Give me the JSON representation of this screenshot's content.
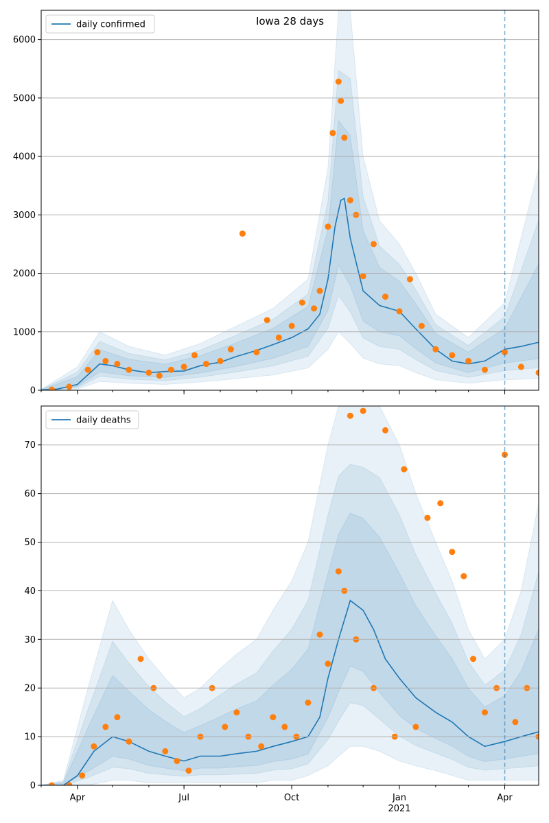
{
  "title": "Iowa 28 days",
  "colors": {
    "line": "#1f77b4",
    "points": "#ff7f0e",
    "band": "#1f77b4",
    "grid": "#b0b0b0",
    "vline": "#1f77b4"
  },
  "chart_data": [
    {
      "type": "line",
      "name": "confirmed-panel",
      "title": "Iowa 28 days",
      "legend": "daily confirmed",
      "legend_position": "top-left",
      "x_ticks": [
        "Apr",
        "Jul",
        "Oct",
        "Jan",
        "Apr"
      ],
      "x_sublabel": "2021",
      "y_ticks": [
        0,
        1000,
        2000,
        3000,
        4000,
        5000,
        6000
      ],
      "ylim": [
        0,
        6500
      ],
      "grid": "horizontal",
      "vline_date": "2021-04-01",
      "series": [
        {
          "name": "daily confirmed",
          "x": [
            "2020-03-01",
            "2020-03-15",
            "2020-04-01",
            "2020-04-20",
            "2020-05-01",
            "2020-05-15",
            "2020-06-01",
            "2020-06-15",
            "2020-07-01",
            "2020-07-15",
            "2020-08-01",
            "2020-08-15",
            "2020-09-01",
            "2020-09-15",
            "2020-10-01",
            "2020-10-15",
            "2020-10-25",
            "2020-11-01",
            "2020-11-07",
            "2020-11-12",
            "2020-11-15",
            "2020-11-20",
            "2020-12-01",
            "2020-12-15",
            "2021-01-01",
            "2021-01-15",
            "2021-02-01",
            "2021-02-15",
            "2021-03-01",
            "2021-03-15",
            "2021-04-01",
            "2021-04-15",
            "2021-04-30"
          ],
          "y": [
            5,
            20,
            100,
            450,
            420,
            350,
            300,
            320,
            330,
            420,
            480,
            580,
            680,
            780,
            900,
            1050,
            1300,
            1900,
            2800,
            3250,
            3280,
            2600,
            1700,
            1450,
            1350,
            1050,
            700,
            500,
            450,
            500,
            700,
            750,
            820
          ]
        },
        {
          "name": "daily confirmed (observed)",
          "x": [
            "2020-03-10",
            "2020-03-25",
            "2020-04-10",
            "2020-04-18",
            "2020-04-25",
            "2020-05-05",
            "2020-05-15",
            "2020-06-01",
            "2020-06-10",
            "2020-06-20",
            "2020-07-01",
            "2020-07-10",
            "2020-07-20",
            "2020-08-01",
            "2020-08-10",
            "2020-08-20",
            "2020-09-01",
            "2020-09-10",
            "2020-09-20",
            "2020-10-01",
            "2020-10-10",
            "2020-10-20",
            "2020-10-25",
            "2020-11-01",
            "2020-11-05",
            "2020-11-10",
            "2020-11-12",
            "2020-11-15",
            "2020-11-20",
            "2020-11-25",
            "2020-12-01",
            "2020-12-10",
            "2020-12-20",
            "2021-01-01",
            "2021-01-10",
            "2021-01-20",
            "2021-02-01",
            "2021-02-15",
            "2021-03-01",
            "2021-03-15",
            "2021-04-01",
            "2021-04-15",
            "2021-04-30"
          ],
          "y": [
            10,
            60,
            350,
            650,
            500,
            450,
            350,
            300,
            250,
            350,
            400,
            600,
            450,
            500,
            700,
            2680,
            650,
            1200,
            900,
            1100,
            1500,
            1400,
            1700,
            2800,
            4400,
            5280,
            4950,
            4320,
            3250,
            3000,
            1950,
            2500,
            1600,
            1350,
            1900,
            1100,
            700,
            600,
            500,
            350,
            650,
            400,
            300
          ]
        },
        {
          "name": "uncertainty-band-outer",
          "x": [
            "2020-03-01",
            "2020-04-01",
            "2020-04-20",
            "2020-05-15",
            "2020-06-15",
            "2020-07-15",
            "2020-08-15",
            "2020-09-15",
            "2020-10-15",
            "2020-11-01",
            "2020-11-10",
            "2020-11-20",
            "2020-12-01",
            "2020-12-15",
            "2021-01-01",
            "2021-01-15",
            "2021-02-01",
            "2021-03-01",
            "2021-04-01",
            "2021-04-30"
          ],
          "lower": [
            0,
            20,
            150,
            120,
            100,
            140,
            200,
            260,
            380,
            700,
            1000,
            800,
            550,
            450,
            420,
            300,
            180,
            120,
            180,
            200
          ],
          "upper": [
            15,
            400,
            1000,
            750,
            600,
            800,
            1100,
            1400,
            1900,
            3800,
            6500,
            6500,
            4000,
            2900,
            2500,
            2000,
            1300,
            900,
            1500,
            3800
          ]
        }
      ]
    },
    {
      "type": "line",
      "name": "deaths-panel",
      "legend": "daily deaths",
      "legend_position": "top-left",
      "x_ticks": [
        "Apr",
        "Jul",
        "Oct",
        "Jan",
        "Apr"
      ],
      "x_sublabel": "2021",
      "y_ticks": [
        0,
        10,
        20,
        30,
        40,
        50,
        60,
        70
      ],
      "ylim": [
        0,
        78
      ],
      "grid": "horizontal",
      "vline_date": "2021-04-01",
      "series": [
        {
          "name": "daily deaths",
          "x": [
            "2020-03-01",
            "2020-03-20",
            "2020-04-01",
            "2020-04-15",
            "2020-05-01",
            "2020-05-15",
            "2020-06-01",
            "2020-06-15",
            "2020-07-01",
            "2020-07-15",
            "2020-08-01",
            "2020-08-15",
            "2020-09-01",
            "2020-09-15",
            "2020-10-01",
            "2020-10-15",
            "2020-10-25",
            "2020-11-01",
            "2020-11-10",
            "2020-11-20",
            "2020-12-01",
            "2020-12-10",
            "2020-12-20",
            "2021-01-01",
            "2021-01-15",
            "2021-02-01",
            "2021-02-15",
            "2021-03-01",
            "2021-03-15",
            "2021-04-01",
            "2021-04-15",
            "2021-04-30"
          ],
          "y": [
            0,
            0,
            2,
            7,
            10,
            9,
            7,
            6,
            5,
            6,
            6,
            6.5,
            7,
            8,
            9,
            10,
            14,
            22,
            30,
            38,
            36,
            32,
            26,
            22,
            18,
            15,
            13,
            10,
            8,
            9,
            10,
            11
          ]
        },
        {
          "name": "daily deaths (observed)",
          "x": [
            "2020-03-10",
            "2020-03-25",
            "2020-04-05",
            "2020-04-15",
            "2020-04-25",
            "2020-05-05",
            "2020-05-15",
            "2020-05-25",
            "2020-06-05",
            "2020-06-15",
            "2020-06-25",
            "2020-07-05",
            "2020-07-15",
            "2020-07-25",
            "2020-08-05",
            "2020-08-15",
            "2020-08-25",
            "2020-09-05",
            "2020-09-15",
            "2020-09-25",
            "2020-10-05",
            "2020-10-15",
            "2020-10-25",
            "2020-11-01",
            "2020-11-10",
            "2020-11-15",
            "2020-11-20",
            "2020-11-25",
            "2020-12-01",
            "2020-12-10",
            "2020-12-20",
            "2020-12-28",
            "2021-01-05",
            "2021-01-15",
            "2021-01-25",
            "2021-02-05",
            "2021-02-15",
            "2021-02-25",
            "2021-03-05",
            "2021-03-15",
            "2021-03-25",
            "2021-04-01",
            "2021-04-10",
            "2021-04-20",
            "2021-04-30"
          ],
          "y": [
            0,
            0,
            2,
            8,
            12,
            14,
            9,
            26,
            20,
            7,
            5,
            3,
            10,
            20,
            12,
            15,
            10,
            8,
            14,
            12,
            10,
            17,
            31,
            25,
            44,
            40,
            76,
            30,
            77,
            20,
            73,
            10,
            65,
            12,
            55,
            58,
            48,
            43,
            26,
            15,
            20,
            68,
            13,
            20,
            10
          ]
        },
        {
          "name": "uncertainty-band-outer",
          "x": [
            "2020-03-01",
            "2020-03-20",
            "2020-04-10",
            "2020-05-01",
            "2020-05-15",
            "2020-06-01",
            "2020-06-15",
            "2020-07-01",
            "2020-07-15",
            "2020-08-01",
            "2020-08-15",
            "2020-09-01",
            "2020-09-15",
            "2020-10-01",
            "2020-10-15",
            "2020-11-01",
            "2020-11-10",
            "2020-11-20",
            "2020-12-01",
            "2020-12-15",
            "2021-01-01",
            "2021-01-15",
            "2021-02-01",
            "2021-02-15",
            "2021-03-01",
            "2021-03-15",
            "2021-04-01",
            "2021-04-15",
            "2021-04-30"
          ],
          "lower": [
            0,
            0,
            0,
            1,
            1,
            0.5,
            0.5,
            0.5,
            0.5,
            0.5,
            0.5,
            0.5,
            1,
            1,
            2,
            4,
            6,
            8,
            8,
            7,
            5,
            4,
            3,
            2,
            1,
            1,
            1,
            1,
            1
          ],
          "upper": [
            0,
            1,
            20,
            38,
            32,
            26,
            22,
            18,
            20,
            24,
            27,
            30,
            36,
            42,
            50,
            70,
            78,
            78,
            78,
            78,
            70,
            60,
            50,
            42,
            32,
            26,
            30,
            40,
            58
          ]
        }
      ]
    }
  ]
}
